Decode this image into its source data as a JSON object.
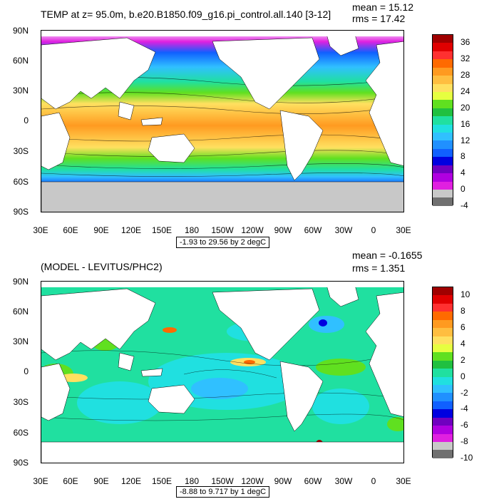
{
  "panels": [
    {
      "title": "TEMP at z=  95.0m, b.e20.B1850.f09_g16.pi_control.all.140 [3-12]",
      "mean": "mean = 15.12",
      "rms": "rms = 17.42",
      "lat_labels": [
        "90N",
        "60N",
        "30N",
        "0",
        "30S",
        "60S",
        "90S"
      ],
      "lon_labels": [
        "30E",
        "60E",
        "90E",
        "120E",
        "150E",
        "180",
        "150W",
        "120W",
        "90W",
        "60W",
        "30W",
        "0",
        "30E"
      ],
      "range_text": "-1.93 to 29.56 by 2 degC",
      "colorbar_labels": [
        "36",
        "32",
        "28",
        "24",
        "20",
        "16",
        "12",
        "8",
        "4",
        "0",
        "-4"
      ],
      "colorbar_colors": [
        "#a00000",
        "#e00000",
        "#ff3030",
        "#ff6a00",
        "#ff9a20",
        "#ffbe40",
        "#ffe060",
        "#e6ff40",
        "#60e020",
        "#20c040",
        "#20e0a0",
        "#20e0e0",
        "#30c0ff",
        "#2090ff",
        "#1060ff",
        "#0000e0",
        "#7000c0",
        "#b000e0",
        "#e020e0",
        "#c8c8c8",
        "#707070"
      ]
    },
    {
      "title": "(MODEL - LEVITUS/PHC2)",
      "mean": "mean = -0.1655",
      "rms": "rms = 1.351",
      "lat_labels": [
        "90N",
        "60N",
        "30N",
        "0",
        "30S",
        "60S",
        "90S"
      ],
      "lon_labels": [
        "30E",
        "60E",
        "90E",
        "120E",
        "150E",
        "180",
        "150W",
        "120W",
        "90W",
        "60W",
        "30W",
        "0",
        "30E"
      ],
      "range_text": "-8.88 to 9.717 by 1 degC",
      "colorbar_labels": [
        "10",
        "8",
        "6",
        "4",
        "2",
        "0",
        "-2",
        "-4",
        "-6",
        "-8",
        "-10"
      ],
      "colorbar_colors": [
        "#a00000",
        "#e00000",
        "#ff3030",
        "#ff6a00",
        "#ff9a20",
        "#ffbe40",
        "#ffe060",
        "#e6ff40",
        "#60e020",
        "#20c040",
        "#20e0a0",
        "#20e0e0",
        "#30c0ff",
        "#2090ff",
        "#1060ff",
        "#0000e0",
        "#7000c0",
        "#b000e0",
        "#e020e0",
        "#c8c8c8",
        "#707070"
      ]
    }
  ]
}
